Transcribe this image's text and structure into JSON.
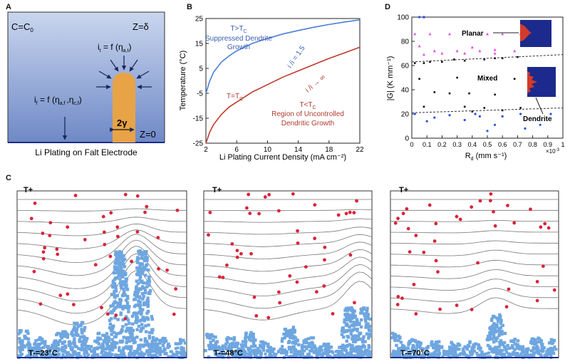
{
  "panels": {
    "A": {
      "letter": "A",
      "c_label": "C=C",
      "c_sub": "0",
      "z_delta": "Z=δ",
      "z_zero": "Z=0",
      "tip_eq": "i",
      "tip_eq_rest": " = f (η",
      "tip_eq_sub": "a,t",
      "flat_eq": "i",
      "flat_eq_rest": " = f (η",
      "flat_eq_sub": "a,f ",
      "flat_eq_sub2": "c,f",
      "gamma": "2γ",
      "caption": "Li Plating on Falt Electrode"
    },
    "B": {
      "letter": "B",
      "label_high": "T>T",
      "label_high_sub": "C",
      "label_high_desc1": "Suppressed Dendrite",
      "label_high_desc2": "Growth",
      "label_ratio1": "i /i = 1.5",
      "label_ratio2": "i /i → ∞",
      "label_tc": "T=T",
      "label_tc_sub": "C",
      "label_low": "T<T",
      "label_low_sub": "C",
      "label_low_desc1": "Region of Uncontrolled",
      "label_low_desc2": "Dendritic Growth"
    },
    "C": {
      "letter": "C",
      "sims": [
        {
          "top_label": "T+",
          "bottom_label": "T-=23°C"
        },
        {
          "top_label": "T+",
          "bottom_label": "T-=48°C"
        },
        {
          "top_label": "T+",
          "bottom_label": "T-=70°C"
        }
      ]
    },
    "D": {
      "letter": "D",
      "label_planar": "Planar",
      "label_mixed": "Mixed",
      "label_dendrite": "Dendrite",
      "exp_label": "×10",
      "exp_sup": "-3"
    }
  },
  "colors": {
    "blue_curve": "#4a7fd4",
    "red_curve": "#c0392b",
    "dendrite": "#6ea6e0",
    "particle": "#d9243a",
    "electrolyte_top": "#c8d6ee",
    "electrolyte_bottom": "#6b87c8",
    "tip": "#e8a347"
  },
  "chart_data": [
    {
      "id": "B",
      "type": "line",
      "xlabel": "Li Plating Current Density (mA cm⁻²)",
      "ylabel": "Temperature (°C)",
      "xlim": [
        2,
        22
      ],
      "ylim": [
        -25,
        25
      ],
      "xticks": [
        2,
        6,
        10,
        14,
        18,
        22
      ],
      "yticks": [
        -25,
        -15,
        -5,
        5,
        15,
        25
      ],
      "series": [
        {
          "name": "T>Tc (i_t/i_f = 1.5)",
          "color": "blue",
          "x": [
            2,
            2.5,
            3,
            4,
            5,
            6,
            8,
            10,
            12,
            14,
            16,
            18,
            20,
            22
          ],
          "y": [
            -5,
            0,
            3.5,
            7.5,
            10,
            12,
            15,
            17,
            18.8,
            20.2,
            21.5,
            22.6,
            23.6,
            24.5
          ]
        },
        {
          "name": "T=Tc (i_t/i_f → ∞)",
          "color": "red",
          "x": [
            2,
            2.5,
            3,
            4,
            5,
            6,
            8,
            10,
            12,
            14,
            16,
            18,
            20,
            22
          ],
          "y": [
            -25,
            -20.5,
            -17.5,
            -13.5,
            -10.5,
            -8.5,
            -4.5,
            -1.5,
            1.5,
            4,
            6.5,
            9,
            11.2,
            13.5
          ]
        }
      ]
    },
    {
      "id": "D",
      "type": "scatter",
      "xlabel": "R",
      "xlabel_sub": "d",
      "xlabel_units": " (mm s⁻¹)",
      "ylabel": "|G| (K mm⁻¹)",
      "xlim": [
        0,
        1
      ],
      "ylim": [
        0,
        100
      ],
      "xticks": [
        0,
        0.1,
        0.2,
        0.3,
        0.4,
        0.5,
        0.6,
        0.7,
        0.8,
        0.9,
        1
      ],
      "xtick_labels": [
        "0",
        "0.1",
        "0.2",
        "0.3",
        "0.4",
        "0.5",
        "0.6",
        "0.7",
        "0.8",
        "0.9",
        "1"
      ],
      "yticks": [
        0,
        20,
        40,
        60,
        80,
        100
      ],
      "boundaries": [
        {
          "name": "planar-mixed",
          "x": [
            0,
            1
          ],
          "y": [
            63,
            69
          ]
        },
        {
          "name": "mixed-dendrite",
          "x": [
            0,
            1
          ],
          "y": [
            21,
            25
          ]
        }
      ],
      "series": [
        {
          "name": "Planar",
          "color": "magenta",
          "points": [
            [
              0.02,
              86
            ],
            [
              0.08,
              100
            ],
            [
              0.12,
              86
            ],
            [
              0.05,
              76
            ],
            [
              0.15,
              72
            ],
            [
              0.25,
              86
            ],
            [
              0.3,
              72
            ],
            [
              0.4,
              75
            ],
            [
              0.45,
              72
            ],
            [
              0.5,
              86
            ],
            [
              0.55,
              73
            ],
            [
              0.6,
              86
            ],
            [
              0.68,
              72
            ],
            [
              0.72,
              86
            ],
            [
              0.08,
              69
            ],
            [
              0.2,
              70
            ],
            [
              0.35,
              70
            ],
            [
              0.55,
              70
            ]
          ]
        },
        {
          "name": "Mixed",
          "color": "black",
          "points": [
            [
              0.02,
              62
            ],
            [
              0.08,
              62
            ],
            [
              0.12,
              63
            ],
            [
              0.2,
              63
            ],
            [
              0.28,
              65
            ],
            [
              0.35,
              64
            ],
            [
              0.48,
              65
            ],
            [
              0.55,
              66
            ],
            [
              0.6,
              66
            ],
            [
              0.7,
              67
            ],
            [
              0.05,
              49
            ],
            [
              0.3,
              50
            ],
            [
              0.5,
              50
            ],
            [
              0.68,
              49
            ],
            [
              0.15,
              38
            ],
            [
              0.25,
              37
            ],
            [
              0.38,
              37
            ],
            [
              0.55,
              36
            ],
            [
              0.08,
              26
            ],
            [
              0.35,
              26
            ],
            [
              0.48,
              25
            ],
            [
              0.72,
              25
            ],
            [
              0.4,
              22
            ],
            [
              0.6,
              23
            ]
          ]
        },
        {
          "name": "Dendrite",
          "color": "blue",
          "points": [
            [
              0.05,
              100
            ],
            [
              0.08,
              100
            ],
            [
              0.02,
              20
            ],
            [
              0.1,
              14
            ],
            [
              0.15,
              17
            ],
            [
              0.25,
              19
            ],
            [
              0.35,
              15
            ],
            [
              0.42,
              20
            ],
            [
              0.5,
              6
            ],
            [
              0.55,
              11
            ],
            [
              0.6,
              18
            ],
            [
              0.72,
              20
            ],
            [
              0.75,
              8
            ],
            [
              0.85,
              11
            ],
            [
              0.92,
              20
            ],
            [
              0.45,
              18
            ]
          ]
        }
      ]
    }
  ]
}
